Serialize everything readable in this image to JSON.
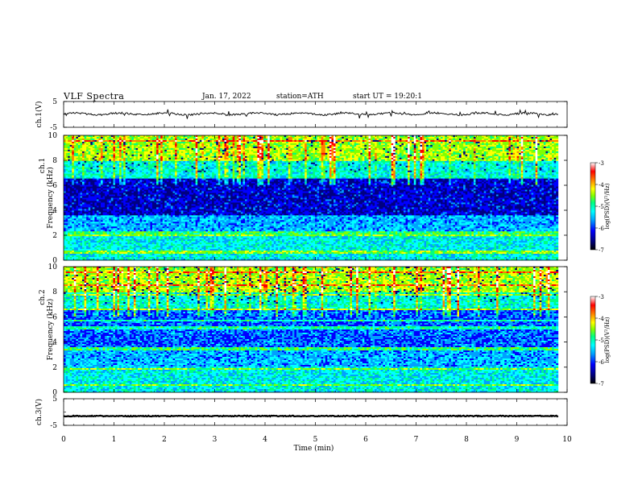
{
  "header": {
    "title": "VLF Spectra",
    "date": "Jan. 17, 2022",
    "station": "station=ATH",
    "start": "start UT = 19:20:1"
  },
  "colors": {
    "spectrogram_scale": [
      "#000000",
      "#000080",
      "#0000ff",
      "#00a0ff",
      "#00ffff",
      "#00ff80",
      "#80ff00",
      "#ffff00",
      "#ff8000",
      "#ff0000",
      "#ffffff"
    ]
  },
  "chart_data": [
    {
      "type": "line",
      "ylabel": "ch.1(V)",
      "ylim": [
        -5,
        5
      ],
      "yticks": [
        5,
        -5
      ],
      "xlim": [
        0,
        10
      ],
      "trace_level_v": 0.2,
      "grid": false
    },
    {
      "type": "heatmap",
      "ylabel_top": "ch.1",
      "ylabel": "Frequency (kHz)",
      "ylim": [
        0,
        10
      ],
      "yticks": [
        0,
        2,
        4,
        6,
        8,
        10
      ],
      "xlim": [
        0,
        10
      ],
      "data_extent_min": 9.82,
      "colorbar": {
        "label": "log(PSD)(V²/Hz)",
        "range": [
          -7,
          -3
        ],
        "ticks": [
          -3,
          -4,
          -5,
          -6,
          -7
        ]
      }
    },
    {
      "type": "heatmap",
      "ylabel_top": "ch.2",
      "ylabel": "Frequency (kHz)",
      "ylim": [
        0,
        10
      ],
      "yticks": [
        0,
        2,
        4,
        6,
        8,
        10
      ],
      "xlim": [
        0,
        10
      ],
      "data_extent_min": 9.82,
      "colorbar": {
        "label": "log(PSD)(V²/Hz)",
        "range": [
          -7,
          -3
        ],
        "ticks": [
          -3,
          -4,
          -5,
          -6,
          -7
        ]
      }
    },
    {
      "type": "line",
      "ylabel": "ch.3(V)",
      "ylim": [
        -5,
        5
      ],
      "yticks": [
        5,
        -5
      ],
      "xlim": [
        0,
        10
      ],
      "trace_level_v": -1.5,
      "grid": false,
      "xlabel": "Time (min)",
      "xticks": [
        0,
        1,
        2,
        3,
        4,
        5,
        6,
        7,
        8,
        9,
        10
      ]
    }
  ]
}
